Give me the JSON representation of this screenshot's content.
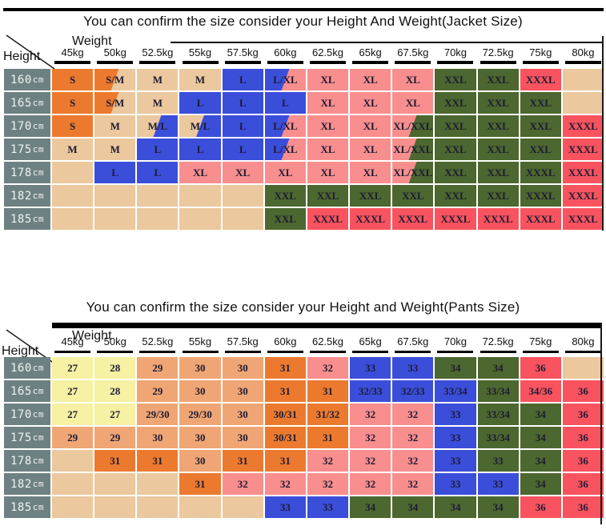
{
  "palette": {
    "orange": "#EC7A2E",
    "tan": "#EBC89D",
    "blue": "#3B4EDA",
    "pink": "#F98E8E",
    "green": "#4C672F",
    "red": "#F9535F",
    "yellow": "#F6F1A3",
    "salmon": "#F0A674",
    "rowheader_bg": "#6E8182",
    "line": "#000000"
  },
  "jacket": {
    "title": "You can confirm the size consider  your Height And Weight(Jacket Size)",
    "weight_label": "Weight",
    "height_label": "Height",
    "columns": [
      "45kg",
      "50kg",
      "52.5kg",
      "55kg",
      "57.5kg",
      "60kg",
      "62.5kg",
      "65kg",
      "67.5kg",
      "70kg",
      "72.5kg",
      "75kg",
      "80kg"
    ],
    "rows": [
      {
        "height": "160cm",
        "cells": [
          {
            "t": "S",
            "c": "orange"
          },
          {
            "t": "S/M",
            "c": "orange|tan"
          },
          {
            "t": "M",
            "c": "tan"
          },
          {
            "t": "M",
            "c": "tan"
          },
          {
            "t": "L",
            "c": "blue"
          },
          {
            "t": "L/XL",
            "c": "blue|pink"
          },
          {
            "t": "XL",
            "c": "pink"
          },
          {
            "t": "XL",
            "c": "pink"
          },
          {
            "t": "XL",
            "c": "pink"
          },
          {
            "t": "XXL",
            "c": "green"
          },
          {
            "t": "XXL",
            "c": "green"
          },
          {
            "t": "XXXL",
            "c": "red"
          },
          {
            "t": "",
            "c": "tan"
          }
        ]
      },
      {
        "height": "165cm",
        "cells": [
          {
            "t": "S",
            "c": "orange"
          },
          {
            "t": "S/M",
            "c": "orange|tan"
          },
          {
            "t": "M",
            "c": "tan"
          },
          {
            "t": "L",
            "c": "blue"
          },
          {
            "t": "L",
            "c": "blue"
          },
          {
            "t": "L",
            "c": "blue"
          },
          {
            "t": "XL",
            "c": "pink"
          },
          {
            "t": "XL",
            "c": "pink"
          },
          {
            "t": "XL",
            "c": "pink"
          },
          {
            "t": "XXL",
            "c": "green"
          },
          {
            "t": "XXL",
            "c": "green"
          },
          {
            "t": "XXL",
            "c": "green"
          },
          {
            "t": "",
            "c": "tan"
          }
        ]
      },
      {
        "height": "170cm",
        "cells": [
          {
            "t": "S",
            "c": "orange"
          },
          {
            "t": "M",
            "c": "tan"
          },
          {
            "t": "M/L",
            "c": "tan|blue"
          },
          {
            "t": "M/L",
            "c": "tan|blue"
          },
          {
            "t": "L",
            "c": "blue"
          },
          {
            "t": "L/XL",
            "c": "blue|pink"
          },
          {
            "t": "XL",
            "c": "pink"
          },
          {
            "t": "XL",
            "c": "pink"
          },
          {
            "t": "XL/XXL",
            "c": "pink|green"
          },
          {
            "t": "XXL",
            "c": "green"
          },
          {
            "t": "XXL",
            "c": "green"
          },
          {
            "t": "XXL",
            "c": "green"
          },
          {
            "t": "XXXL",
            "c": "red"
          }
        ]
      },
      {
        "height": "175cm",
        "cells": [
          {
            "t": "M",
            "c": "tan"
          },
          {
            "t": "M",
            "c": "tan"
          },
          {
            "t": "L",
            "c": "blue"
          },
          {
            "t": "L",
            "c": "blue"
          },
          {
            "t": "L",
            "c": "blue"
          },
          {
            "t": "L/XL",
            "c": "blue|pink"
          },
          {
            "t": "XL",
            "c": "pink"
          },
          {
            "t": "XL",
            "c": "pink"
          },
          {
            "t": "XL/XXL",
            "c": "pink|green"
          },
          {
            "t": "XXL",
            "c": "green"
          },
          {
            "t": "XXL",
            "c": "green"
          },
          {
            "t": "XXL",
            "c": "green"
          },
          {
            "t": "XXXL",
            "c": "red"
          }
        ]
      },
      {
        "height": "178cm",
        "cells": [
          {
            "t": "",
            "c": "tan"
          },
          {
            "t": "L",
            "c": "blue"
          },
          {
            "t": "L",
            "c": "blue"
          },
          {
            "t": "XL",
            "c": "pink"
          },
          {
            "t": "XL",
            "c": "pink"
          },
          {
            "t": "XL",
            "c": "pink"
          },
          {
            "t": "XL",
            "c": "pink"
          },
          {
            "t": "XL",
            "c": "pink"
          },
          {
            "t": "XL/XXL",
            "c": "pink|green"
          },
          {
            "t": "XXL",
            "c": "green"
          },
          {
            "t": "XXL",
            "c": "green"
          },
          {
            "t": "XXXL",
            "c": "green"
          },
          {
            "t": "XXXL",
            "c": "red"
          }
        ]
      },
      {
        "height": "182cm",
        "cells": [
          {
            "t": "",
            "c": "tan"
          },
          {
            "t": "",
            "c": "tan"
          },
          {
            "t": "",
            "c": "tan"
          },
          {
            "t": "",
            "c": "tan"
          },
          {
            "t": "",
            "c": "tan"
          },
          {
            "t": "XXL",
            "c": "green"
          },
          {
            "t": "XXL",
            "c": "green"
          },
          {
            "t": "XXL",
            "c": "green"
          },
          {
            "t": "XXL",
            "c": "green"
          },
          {
            "t": "XXL",
            "c": "green"
          },
          {
            "t": "XXL",
            "c": "green"
          },
          {
            "t": "XXXL",
            "c": "green"
          },
          {
            "t": "XXXL",
            "c": "red"
          }
        ]
      },
      {
        "height": "185cm",
        "cells": [
          {
            "t": "",
            "c": "tan"
          },
          {
            "t": "",
            "c": "tan"
          },
          {
            "t": "",
            "c": "tan"
          },
          {
            "t": "",
            "c": "tan"
          },
          {
            "t": "",
            "c": "tan"
          },
          {
            "t": "XXL",
            "c": "green"
          },
          {
            "t": "XXXL",
            "c": "red"
          },
          {
            "t": "XXXL",
            "c": "red"
          },
          {
            "t": "XXXL",
            "c": "red"
          },
          {
            "t": "XXXL",
            "c": "red"
          },
          {
            "t": "XXXL",
            "c": "red"
          },
          {
            "t": "XXXL",
            "c": "red"
          },
          {
            "t": "XXXL",
            "c": "red"
          }
        ]
      }
    ]
  },
  "pants": {
    "title": "You can confirm the size consider your Height and Weight(Pants Size)",
    "weight_label": "Weight",
    "height_label": "Height",
    "columns": [
      "45kg",
      "50kg",
      "52.5kg",
      "55kg",
      "57.5kg",
      "60kg",
      "62.5kg",
      "65kg",
      "67.5kg",
      "70kg",
      "72.5kg",
      "75kg",
      "80kg"
    ],
    "rows": [
      {
        "height": "160cm",
        "cells": [
          {
            "t": "27",
            "c": "yellow"
          },
          {
            "t": "28",
            "c": "yellow"
          },
          {
            "t": "29",
            "c": "salmon"
          },
          {
            "t": "30",
            "c": "salmon"
          },
          {
            "t": "30",
            "c": "salmon"
          },
          {
            "t": "31",
            "c": "orange"
          },
          {
            "t": "32",
            "c": "pink"
          },
          {
            "t": "33",
            "c": "blue"
          },
          {
            "t": "33",
            "c": "blue"
          },
          {
            "t": "34",
            "c": "green"
          },
          {
            "t": "34",
            "c": "green"
          },
          {
            "t": "36",
            "c": "red"
          },
          {
            "t": "",
            "c": "tan"
          }
        ]
      },
      {
        "height": "165cm",
        "cells": [
          {
            "t": "27",
            "c": "yellow"
          },
          {
            "t": "28",
            "c": "yellow"
          },
          {
            "t": "29",
            "c": "salmon"
          },
          {
            "t": "30",
            "c": "salmon"
          },
          {
            "t": "30",
            "c": "salmon"
          },
          {
            "t": "31",
            "c": "orange"
          },
          {
            "t": "31",
            "c": "orange"
          },
          {
            "t": "32/33",
            "c": "blue"
          },
          {
            "t": "32/33",
            "c": "blue"
          },
          {
            "t": "33/34",
            "c": "blue"
          },
          {
            "t": "33/34",
            "c": "green"
          },
          {
            "t": "34/36",
            "c": "red"
          },
          {
            "t": "36",
            "c": "red"
          }
        ]
      },
      {
        "height": "170cm",
        "cells": [
          {
            "t": "27",
            "c": "yellow"
          },
          {
            "t": "27",
            "c": "yellow"
          },
          {
            "t": "29/30",
            "c": "salmon"
          },
          {
            "t": "29/30",
            "c": "salmon"
          },
          {
            "t": "30",
            "c": "salmon"
          },
          {
            "t": "30/31",
            "c": "orange"
          },
          {
            "t": "31/32",
            "c": "orange"
          },
          {
            "t": "32",
            "c": "pink"
          },
          {
            "t": "32",
            "c": "pink"
          },
          {
            "t": "33",
            "c": "blue"
          },
          {
            "t": "33/34",
            "c": "green"
          },
          {
            "t": "34",
            "c": "green"
          },
          {
            "t": "36",
            "c": "red"
          }
        ]
      },
      {
        "height": "175cm",
        "cells": [
          {
            "t": "29",
            "c": "salmon"
          },
          {
            "t": "29",
            "c": "salmon"
          },
          {
            "t": "30",
            "c": "salmon"
          },
          {
            "t": "30",
            "c": "salmon"
          },
          {
            "t": "30",
            "c": "salmon"
          },
          {
            "t": "30/31",
            "c": "orange"
          },
          {
            "t": "31",
            "c": "orange"
          },
          {
            "t": "32",
            "c": "pink"
          },
          {
            "t": "32",
            "c": "pink"
          },
          {
            "t": "33",
            "c": "blue"
          },
          {
            "t": "33/34",
            "c": "green"
          },
          {
            "t": "34",
            "c": "green"
          },
          {
            "t": "36",
            "c": "red"
          }
        ]
      },
      {
        "height": "178cm",
        "cells": [
          {
            "t": "",
            "c": "tan"
          },
          {
            "t": "31",
            "c": "orange"
          },
          {
            "t": "31",
            "c": "orange"
          },
          {
            "t": "30",
            "c": "salmon"
          },
          {
            "t": "31",
            "c": "orange"
          },
          {
            "t": "31",
            "c": "orange"
          },
          {
            "t": "32",
            "c": "pink"
          },
          {
            "t": "32",
            "c": "pink"
          },
          {
            "t": "32",
            "c": "pink"
          },
          {
            "t": "33",
            "c": "blue"
          },
          {
            "t": "33",
            "c": "green"
          },
          {
            "t": "34",
            "c": "green"
          },
          {
            "t": "36",
            "c": "red"
          }
        ]
      },
      {
        "height": "182cm",
        "cells": [
          {
            "t": "",
            "c": "tan"
          },
          {
            "t": "",
            "c": "tan"
          },
          {
            "t": "",
            "c": "tan"
          },
          {
            "t": "31",
            "c": "orange"
          },
          {
            "t": "32",
            "c": "pink"
          },
          {
            "t": "32",
            "c": "pink"
          },
          {
            "t": "32",
            "c": "pink"
          },
          {
            "t": "32",
            "c": "pink"
          },
          {
            "t": "32",
            "c": "pink"
          },
          {
            "t": "33",
            "c": "blue"
          },
          {
            "t": "33",
            "c": "blue"
          },
          {
            "t": "34",
            "c": "green"
          },
          {
            "t": "36",
            "c": "red"
          }
        ]
      },
      {
        "height": "185cm",
        "cells": [
          {
            "t": "",
            "c": "tan"
          },
          {
            "t": "",
            "c": "tan"
          },
          {
            "t": "",
            "c": "tan"
          },
          {
            "t": "",
            "c": "tan"
          },
          {
            "t": "",
            "c": "tan"
          },
          {
            "t": "33",
            "c": "blue"
          },
          {
            "t": "33",
            "c": "blue"
          },
          {
            "t": "34",
            "c": "green"
          },
          {
            "t": "34",
            "c": "green"
          },
          {
            "t": "34",
            "c": "green"
          },
          {
            "t": "34",
            "c": "green"
          },
          {
            "t": "36",
            "c": "red"
          },
          {
            "t": "36",
            "c": "red"
          }
        ]
      }
    ]
  }
}
